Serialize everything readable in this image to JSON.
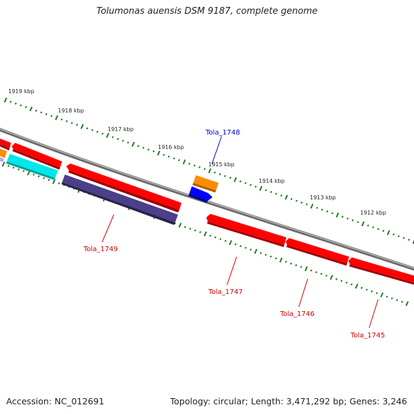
{
  "title": "Tolumonas auensis DSM 9187, complete genome",
  "accession": "Accession: NC_012691",
  "summary": "Topology: circular; Length: 3,471,292 bp; Genes: 3,246",
  "colors": {
    "backbone": "#808080",
    "ticks": "#1e7a1e",
    "gene_red": "#ff0000",
    "gene_orange": "#ff8c00",
    "gene_blue": "#0000ff",
    "gene_cyan": "#00e8e8",
    "gene_purple": "#4b3f8a",
    "label_blue": "#0000c0",
    "label_red": "#cc0000"
  },
  "kbp_labels": [
    "1919 kbp",
    "1918 kbp",
    "1917 kbp",
    "1916 kbp",
    "1915 kbp",
    "1914 kbp",
    "1913 kbp",
    "1912 kbp"
  ],
  "gene_labels": {
    "tola_1748": "Tola_1748",
    "tola_1749": "Tola_1749",
    "tola_1747": "Tola_1747",
    "tola_1746": "Tola_1746",
    "tola_1745": "Tola_1745"
  }
}
